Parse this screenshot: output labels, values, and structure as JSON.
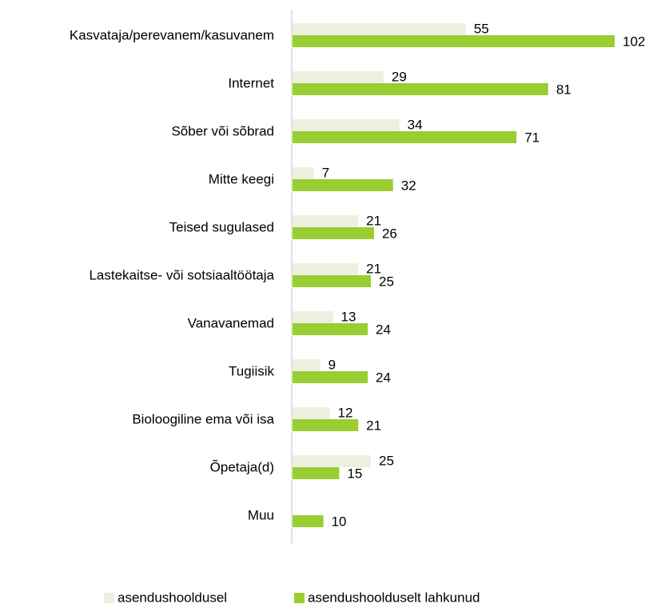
{
  "chart_data": {
    "type": "bar",
    "orientation": "horizontal",
    "categories": [
      "Kasvataja/perevanem/kasuvanem",
      "Internet",
      "Sõber või sõbrad",
      "Mitte keegi",
      "Teised sugulased",
      "Lastekaitse- või sotsiaaltöötaja",
      "Vanavanemad",
      "Tugiisik",
      "Bioloogiline ema või isa",
      "Õpetaja(d)",
      "Muu"
    ],
    "series": [
      {
        "name": "asendushooldusel",
        "color": "#ebf1de",
        "values": [
          55,
          29,
          34,
          7,
          21,
          21,
          13,
          9,
          12,
          25,
          null
        ]
      },
      {
        "name": "asendushoolduselt lahkunud",
        "color": "#9acd32",
        "values": [
          102,
          81,
          71,
          32,
          26,
          25,
          24,
          24,
          21,
          15,
          10
        ]
      }
    ],
    "legend": "bottom"
  }
}
